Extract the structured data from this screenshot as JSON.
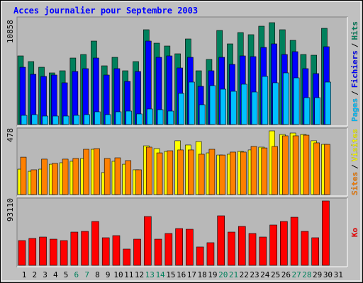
{
  "chart_data": {
    "type": "bar",
    "title": "Acces journalier pour Septembre 2003",
    "categories": [
      "1",
      "2",
      "3",
      "4",
      "5",
      "6",
      "7",
      "8",
      "9",
      "10",
      "11",
      "12",
      "13",
      "14",
      "15",
      "16",
      "17",
      "18",
      "19",
      "20",
      "21",
      "22",
      "23",
      "24",
      "25",
      "26",
      "27",
      "28",
      "29",
      "30",
      "31"
    ],
    "highlight": {
      "color": "#00805c",
      "categories": [
        5,
        6,
        12,
        13,
        19,
        20,
        26,
        27
      ]
    },
    "legend_separator": "/",
    "panels": [
      {
        "ylim": [
          0,
          10858
        ],
        "yticks": [
          10858
        ],
        "series": [
          {
            "name": "Hits",
            "color": "#00805c",
            "values": [
              7314,
              6711,
              6107,
              5504,
              5730,
              7088,
              7465,
              8897,
              6258,
              7163,
              5730,
              6711,
              10104,
              8671,
              8369,
              7540,
              9123,
              5730,
              6937,
              10028,
              8596,
              9802,
              9576,
              10481,
              10858,
              10104,
              8973,
              7465,
              7389,
              10254,
              null
            ]
          },
          {
            "name": "Fichiers",
            "color": "#0000ff",
            "values": [
              6107,
              5353,
              5127,
              5278,
              4449,
              5655,
              5957,
              7088,
              5278,
              5957,
              4599,
              5655,
              8897,
              7163,
              7314,
              6032,
              7163,
              4072,
              5730,
              7163,
              6409,
              7314,
              7238,
              8219,
              8596,
              7465,
              7766,
              5957,
              5429,
              8294,
              null
            ]
          },
          {
            "name": "Pages",
            "color": "#00c0ff",
            "values": [
              980,
              1056,
              905,
              905,
              905,
              980,
              1056,
              1357,
              1056,
              1357,
              1433,
              1131,
              1659,
              1583,
              1433,
              3318,
              4524,
              2111,
              4147,
              3770,
              3544,
              4298,
              3468,
              5127,
              4449,
              5504,
              4976,
              2865,
              2865,
              4524,
              null
            ]
          }
        ]
      },
      {
        "ylim": [
          0,
          478
        ],
        "yticks": [
          478
        ],
        "series": [
          {
            "name": "Visites",
            "color": "#ffff00",
            "values": [
              191,
              175,
              191,
              228,
              239,
              250,
              271,
              340,
              165,
              250,
              228,
              186,
              366,
              345,
              324,
              404,
              372,
              398,
              313,
              297,
              303,
              324,
              335,
              356,
              478,
              451,
              462,
              451,
              404,
              377,
              null
            ]
          },
          {
            "name": "Sites",
            "color": "#ff8000",
            "values": [
              281,
              186,
              266,
              234,
              266,
              271,
              340,
              345,
              271,
              276,
              255,
              186,
              356,
              313,
              329,
              335,
              335,
              303,
              340,
              297,
              319,
              319,
              361,
              350,
              361,
              441,
              441,
              446,
              388,
              377,
              null
            ]
          }
        ]
      },
      {
        "ylim": [
          0,
          93110
        ],
        "yticks": [
          93110
        ],
        "series": [
          {
            "name": "Ko",
            "color": "#ff0000",
            "values": [
              35805,
              38874,
              40920,
              37851,
              35805,
              48081,
              49104,
              63426,
              39897,
              42966,
              23529,
              37851,
              70587,
              37851,
              46035,
              53196,
              52173,
              26598,
              32736,
              71610,
              48081,
              56265,
              46035,
              40920,
              58311,
              63426,
              69564,
              49104,
              39897,
              93110,
              null
            ]
          }
        ]
      }
    ]
  }
}
